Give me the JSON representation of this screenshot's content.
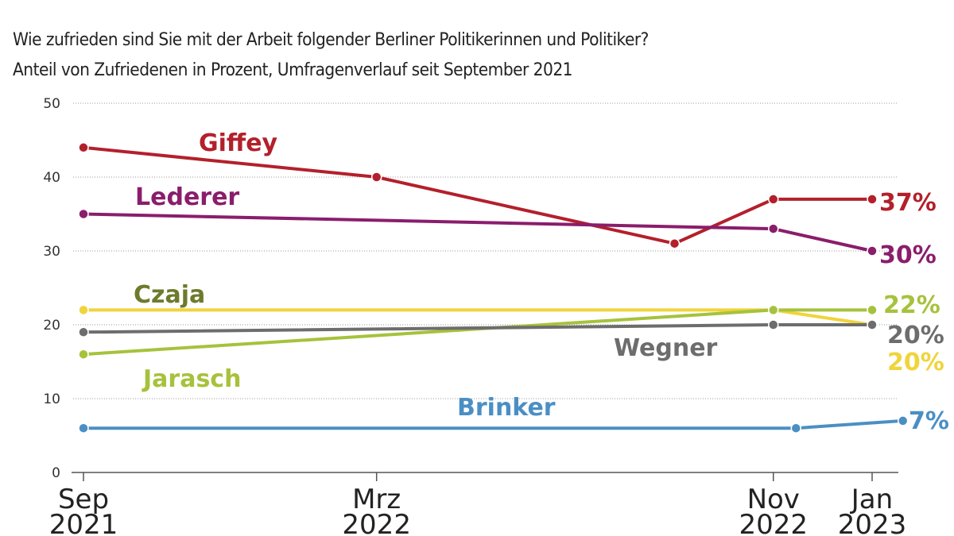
{
  "subtitle_1": "Wie zufrieden sind Sie mit der Arbeit folgender Berliner Politikerinnen und Politiker?",
  "subtitle_2": "Anteil von Zufriedenen in Prozent, Umfragenverlauf seit September 2021",
  "chart_data": {
    "type": "line",
    "ylim": [
      0,
      50
    ],
    "yticks": [
      0,
      10,
      20,
      30,
      40,
      50
    ],
    "grid": true,
    "xticks": [
      {
        "date": "2021-09-01",
        "label": [
          "Sep",
          "2021"
        ]
      },
      {
        "date": "2022-03-01",
        "label": [
          "Mrz",
          "2022"
        ]
      },
      {
        "date": "2022-11-01",
        "label": [
          "Nov",
          "2022"
        ]
      },
      {
        "date": "2023-01-01",
        "label": [
          "Jan",
          "2023"
        ]
      }
    ],
    "series": [
      {
        "name": "Giffey",
        "color": "#b3202b",
        "line_color": "#b3202b",
        "end_label": "37%",
        "points": [
          [
            "2021-09-01",
            44
          ],
          [
            "2022-03-01",
            40
          ],
          [
            "2022-09-01",
            31
          ],
          [
            "2022-11-01",
            37
          ],
          [
            "2023-01-01",
            37
          ]
        ]
      },
      {
        "name": "Lederer",
        "color": "#8a1d6c",
        "line_color": "#8a1d6c",
        "end_label": "30%",
        "points": [
          [
            "2021-09-01",
            35
          ],
          [
            "2022-11-01",
            33
          ],
          [
            "2023-01-01",
            30
          ]
        ]
      },
      {
        "name": "Czaja",
        "color": "#6e7a2c",
        "line_color": "#f0d43a",
        "end_label": "20%",
        "points": [
          [
            "2021-09-01",
            22
          ],
          [
            "2022-11-01",
            22
          ],
          [
            "2023-01-01",
            20
          ]
        ]
      },
      {
        "name": "Jarasch",
        "color": "#a6c23c",
        "line_color": "#a6c23c",
        "end_label": "22%",
        "points": [
          [
            "2021-09-01",
            16
          ],
          [
            "2022-11-01",
            22
          ],
          [
            "2023-01-01",
            22
          ]
        ]
      },
      {
        "name": "Wegner",
        "color": "#6d6d6d",
        "line_color": "#6d6d6d",
        "end_label": "20%",
        "points": [
          [
            "2021-09-01",
            19
          ],
          [
            "2022-11-01",
            20
          ],
          [
            "2023-01-01",
            20
          ]
        ]
      },
      {
        "name": "Brinker",
        "color": "#4a8fc4",
        "line_color": "#4a8fc4",
        "end_label": "7%",
        "points": [
          [
            "2021-09-01",
            6
          ],
          [
            "2022-11-15",
            6
          ],
          [
            "2023-01-20",
            7
          ]
        ]
      }
    ]
  }
}
